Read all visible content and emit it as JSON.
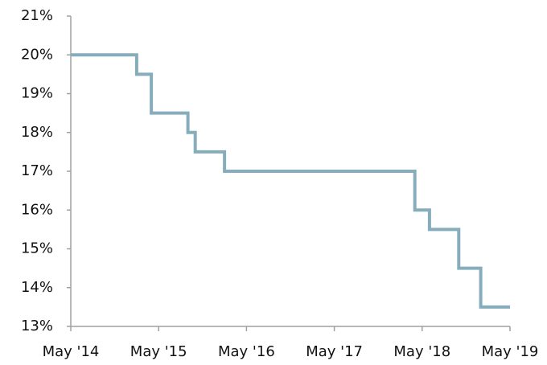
{
  "chart_data": {
    "type": "step",
    "x": [
      "2014-05",
      "2015-02",
      "2015-04",
      "2015-09",
      "2015-10",
      "2016-02",
      "2018-04",
      "2018-06",
      "2018-10",
      "2019-01",
      "2019-01",
      "2019-05"
    ],
    "series": [
      {
        "color": "#86adbb",
        "values": [
          20,
          19.5,
          18.5,
          18,
          17.5,
          17,
          16,
          15.5,
          14.5,
          14,
          13.5,
          13.5
        ]
      }
    ],
    "xlim": [
      "2014-05",
      "2019-05"
    ],
    "xticks": [
      {
        "value": "2014-05",
        "label": "May '14"
      },
      {
        "value": "2015-05",
        "label": "May '15"
      },
      {
        "value": "2016-05",
        "label": "May '16"
      },
      {
        "value": "2017-05",
        "label": "May '17"
      },
      {
        "value": "2018-05",
        "label": "May '18"
      },
      {
        "value": "2019-05",
        "label": "May '19"
      }
    ],
    "ylim": [
      13,
      21
    ],
    "yticks": [
      {
        "value": 13,
        "label": "13%"
      },
      {
        "value": 14,
        "label": "14%"
      },
      {
        "value": 15,
        "label": "15%"
      },
      {
        "value": 16,
        "label": "16%"
      },
      {
        "value": 17,
        "label": "17%"
      },
      {
        "value": 18,
        "label": "18%"
      },
      {
        "value": 19,
        "label": "19%"
      },
      {
        "value": 20,
        "label": "20%"
      },
      {
        "value": 21,
        "label": "21%"
      }
    ],
    "grid": false
  }
}
